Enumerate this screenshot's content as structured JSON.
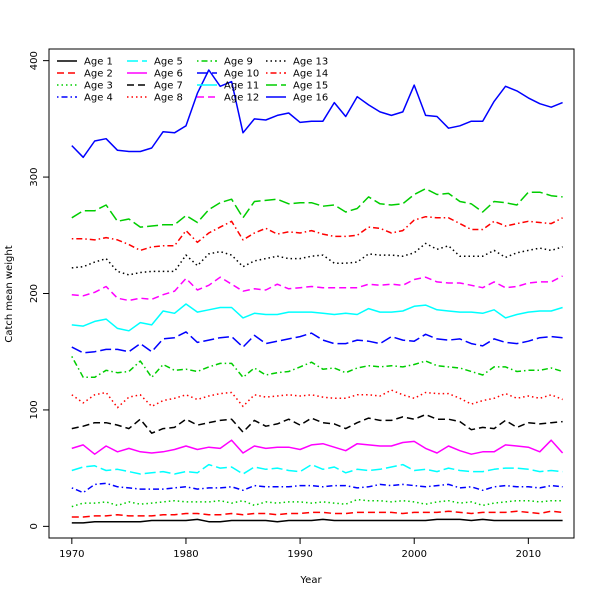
{
  "chart_data": {
    "type": "line",
    "title": "",
    "xlabel": "Year",
    "ylabel": "Catch mean weight",
    "xlim": [
      1968,
      2014
    ],
    "ylim": [
      -10,
      410
    ],
    "x_ticks": [
      1970,
      1980,
      1990,
      2000,
      2010
    ],
    "y_ticks": [
      0,
      100,
      200,
      300,
      400
    ],
    "grid": false,
    "legend": "top-left",
    "x": [
      1970,
      1971,
      1972,
      1973,
      1974,
      1975,
      1976,
      1977,
      1978,
      1979,
      1980,
      1981,
      1982,
      1983,
      1984,
      1985,
      1986,
      1987,
      1988,
      1989,
      1990,
      1991,
      1992,
      1993,
      1994,
      1995,
      1996,
      1997,
      1998,
      1999,
      2000,
      2001,
      2002,
      2003,
      2004,
      2005,
      2006,
      2007,
      2008,
      2009,
      2010,
      2011,
      2012,
      2013
    ],
    "series": [
      {
        "name": "Age 1",
        "color": "#000000",
        "dash": "solid",
        "values": [
          3,
          3,
          4,
          4,
          4,
          4,
          4,
          5,
          5,
          5,
          5,
          6,
          4,
          4,
          5,
          5,
          5,
          5,
          4,
          5,
          5,
          5,
          6,
          5,
          5,
          5,
          5,
          5,
          5,
          5,
          5,
          5,
          6,
          6,
          6,
          5,
          6,
          5,
          5,
          5,
          5,
          5,
          5,
          5
        ]
      },
      {
        "name": "Age 2",
        "color": "#ff0000",
        "dash": "dashed",
        "values": [
          8,
          8,
          9,
          9,
          10,
          9,
          9,
          9,
          10,
          10,
          11,
          11,
          10,
          10,
          11,
          10,
          11,
          11,
          10,
          11,
          11,
          12,
          12,
          11,
          11,
          12,
          12,
          12,
          12,
          11,
          12,
          12,
          12,
          13,
          12,
          11,
          12,
          12,
          12,
          13,
          12,
          11,
          13,
          12
        ]
      },
      {
        "name": "Age 3",
        "color": "#00cd00",
        "dash": "dotted",
        "values": [
          17,
          20,
          20,
          21,
          18,
          21,
          19,
          20,
          21,
          22,
          21,
          21,
          21,
          22,
          20,
          22,
          18,
          21,
          20,
          21,
          21,
          20,
          21,
          20,
          19,
          23,
          22,
          22,
          21,
          22,
          21,
          19,
          21,
          22,
          20,
          21,
          18,
          20,
          21,
          22,
          22,
          21,
          22,
          22
        ]
      },
      {
        "name": "Age 4",
        "color": "#0000ff",
        "dash": "dotdash",
        "values": [
          33,
          29,
          36,
          37,
          34,
          33,
          32,
          32,
          32,
          33,
          34,
          32,
          33,
          33,
          34,
          31,
          35,
          34,
          34,
          34,
          35,
          35,
          34,
          35,
          35,
          33,
          34,
          36,
          35,
          36,
          35,
          34,
          35,
          36,
          33,
          34,
          31,
          34,
          35,
          34,
          34,
          33,
          35,
          34
        ]
      },
      {
        "name": "Age 5",
        "color": "#00ffff",
        "dash": "longdash",
        "values": [
          48,
          51,
          52,
          48,
          49,
          47,
          45,
          46,
          47,
          45,
          47,
          46,
          53,
          50,
          51,
          45,
          51,
          49,
          50,
          48,
          47,
          53,
          49,
          51,
          46,
          49,
          48,
          49,
          51,
          53,
          48,
          49,
          47,
          50,
          48,
          47,
          47,
          49,
          50,
          50,
          49,
          47,
          48,
          47
        ]
      },
      {
        "name": "Age 6",
        "color": "#ff00ff",
        "dash": "solid",
        "values": [
          67,
          70,
          62,
          69,
          64,
          67,
          64,
          63,
          64,
          66,
          69,
          66,
          68,
          67,
          74,
          63,
          69,
          67,
          68,
          68,
          66,
          70,
          71,
          68,
          65,
          71,
          70,
          69,
          69,
          72,
          73,
          67,
          63,
          69,
          65,
          62,
          64,
          64,
          70,
          69,
          68,
          64,
          74,
          63
        ]
      },
      {
        "name": "Age 7",
        "color": "#000000",
        "dash": "dashed",
        "values": [
          84,
          86,
          89,
          89,
          87,
          84,
          92,
          80,
          84,
          85,
          92,
          87,
          89,
          91,
          92,
          81,
          91,
          86,
          88,
          92,
          87,
          93,
          89,
          88,
          84,
          89,
          93,
          91,
          91,
          94,
          92,
          96,
          92,
          92,
          90,
          83,
          85,
          84,
          91,
          85,
          89,
          88,
          89,
          90
        ]
      },
      {
        "name": "Age 8",
        "color": "#ff0000",
        "dash": "dotted",
        "values": [
          113,
          106,
          113,
          115,
          102,
          111,
          113,
          103,
          108,
          110,
          113,
          109,
          112,
          114,
          115,
          103,
          113,
          111,
          112,
          113,
          112,
          113,
          111,
          110,
          110,
          113,
          113,
          112,
          117,
          113,
          110,
          115,
          114,
          114,
          110,
          105,
          108,
          110,
          114,
          110,
          112,
          110,
          113,
          109
        ]
      },
      {
        "name": "Age 9",
        "color": "#00cd00",
        "dash": "dotdash",
        "values": [
          146,
          128,
          128,
          134,
          132,
          133,
          142,
          128,
          139,
          134,
          135,
          133,
          137,
          140,
          140,
          128,
          136,
          130,
          132,
          133,
          137,
          141,
          135,
          136,
          132,
          136,
          138,
          137,
          138,
          137,
          139,
          142,
          138,
          137,
          136,
          133,
          130,
          137,
          137,
          133,
          134,
          134,
          136,
          133
        ]
      },
      {
        "name": "Age 10",
        "color": "#0000ff",
        "dash": "longdash",
        "values": [
          154,
          149,
          150,
          152,
          152,
          150,
          157,
          150,
          161,
          162,
          167,
          158,
          160,
          162,
          163,
          154,
          164,
          157,
          159,
          161,
          163,
          166,
          160,
          157,
          157,
          160,
          159,
          157,
          163,
          160,
          159,
          165,
          161,
          160,
          161,
          157,
          155,
          161,
          158,
          157,
          159,
          162,
          163,
          162
        ]
      },
      {
        "name": "Age 11",
        "color": "#00ffff",
        "dash": "solid",
        "values": [
          173,
          172,
          176,
          178,
          170,
          168,
          175,
          173,
          185,
          183,
          191,
          184,
          186,
          188,
          188,
          179,
          183,
          182,
          182,
          184,
          184,
          184,
          183,
          182,
          183,
          182,
          187,
          184,
          184,
          185,
          189,
          190,
          186,
          185,
          184,
          184,
          183,
          186,
          179,
          182,
          184,
          185,
          185,
          188
        ]
      },
      {
        "name": "Age 12",
        "color": "#ff00ff",
        "dash": "dashed",
        "values": [
          199,
          198,
          201,
          206,
          196,
          194,
          196,
          195,
          199,
          202,
          213,
          203,
          207,
          214,
          208,
          202,
          204,
          203,
          208,
          204,
          205,
          206,
          205,
          205,
          205,
          205,
          208,
          207,
          208,
          207,
          212,
          214,
          210,
          209,
          209,
          207,
          205,
          210,
          205,
          206,
          209,
          210,
          210,
          215
        ]
      },
      {
        "name": "Age 13",
        "color": "#000000",
        "dash": "dotted",
        "values": [
          222,
          223,
          227,
          230,
          219,
          216,
          218,
          219,
          219,
          219,
          233,
          224,
          234,
          236,
          233,
          223,
          228,
          230,
          232,
          230,
          230,
          232,
          233,
          226,
          226,
          227,
          234,
          233,
          233,
          232,
          235,
          243,
          238,
          241,
          232,
          232,
          232,
          237,
          231,
          235,
          237,
          239,
          237,
          240
        ]
      },
      {
        "name": "Age 14",
        "color": "#ff0000",
        "dash": "dotdash",
        "values": [
          247,
          247,
          246,
          248,
          246,
          242,
          237,
          240,
          241,
          241,
          254,
          244,
          252,
          257,
          262,
          246,
          252,
          256,
          251,
          253,
          252,
          254,
          251,
          249,
          249,
          250,
          257,
          256,
          252,
          254,
          263,
          266,
          265,
          265,
          260,
          255,
          255,
          262,
          258,
          260,
          262,
          261,
          260,
          265
        ]
      },
      {
        "name": "Age 15",
        "color": "#00cd00",
        "dash": "longdash",
        "values": [
          265,
          271,
          271,
          276,
          262,
          264,
          257,
          258,
          259,
          259,
          267,
          261,
          272,
          278,
          281,
          265,
          279,
          280,
          281,
          277,
          278,
          278,
          275,
          276,
          270,
          273,
          283,
          277,
          276,
          277,
          285,
          290,
          285,
          286,
          279,
          277,
          270,
          279,
          278,
          276,
          287,
          287,
          284,
          283
        ]
      },
      {
        "name": "Age 16",
        "color": "#0000ff",
        "dash": "solid",
        "values": [
          327,
          317,
          331,
          333,
          323,
          322,
          322,
          325,
          339,
          338,
          344,
          372,
          392,
          378,
          382,
          338,
          350,
          349,
          353,
          355,
          347,
          348,
          348,
          364,
          352,
          369,
          362,
          356,
          353,
          356,
          379,
          353,
          352,
          342,
          344,
          348,
          348,
          365,
          378,
          374,
          368,
          363,
          360,
          364
        ]
      }
    ]
  }
}
